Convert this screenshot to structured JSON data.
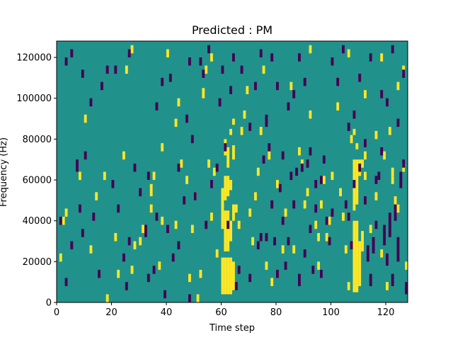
{
  "chart_data": {
    "type": "heatmap",
    "title": "Predicted : PM",
    "xlabel": "Time step",
    "ylabel": "Frequency (Hz)",
    "xlim": [
      0,
      128
    ],
    "ylim": [
      0,
      128000
    ],
    "x_ticks": [
      0,
      20,
      40,
      60,
      80,
      100,
      120
    ],
    "y_ticks": [
      0,
      20000,
      40000,
      60000,
      80000,
      100000,
      120000
    ],
    "x_tick_labels": [
      "0",
      "20",
      "40",
      "60",
      "80",
      "100",
      "120"
    ],
    "y_tick_labels": [
      "0",
      "20000",
      "40000",
      "60000",
      "80000",
      "100000",
      "120000"
    ],
    "n_freq_bins": 128,
    "bin_width_hz": 1000,
    "background_value": 0,
    "colors": {
      "low": "#440154",
      "background": "#21918c",
      "high": "#fde725"
    },
    "cell_values": {
      "low": -1,
      "background": 0,
      "high": 1
    },
    "high_cells": [
      [
        60,
        4,
        22
      ],
      [
        61,
        4,
        22
      ],
      [
        62,
        4,
        22
      ],
      [
        63,
        4,
        22
      ],
      [
        64,
        6,
        20
      ],
      [
        61,
        25,
        45
      ],
      [
        62,
        25,
        45
      ],
      [
        60,
        36,
        48
      ],
      [
        63,
        30,
        40
      ],
      [
        61,
        50,
        62
      ],
      [
        62,
        52,
        62
      ],
      [
        63,
        55,
        60
      ],
      [
        60,
        46,
        56
      ],
      [
        64,
        40,
        48
      ],
      [
        61,
        72,
        80
      ],
      [
        62,
        66,
        76
      ],
      [
        64,
        70,
        77
      ],
      [
        63,
        82,
        85
      ],
      [
        64,
        87,
        90
      ],
      [
        108,
        5,
        40
      ],
      [
        109,
        5,
        40
      ],
      [
        110,
        8,
        30
      ],
      [
        111,
        25,
        35
      ],
      [
        108,
        45,
        70
      ],
      [
        109,
        48,
        70
      ],
      [
        110,
        62,
        70
      ],
      [
        111,
        66,
        70
      ],
      [
        112,
        70,
        74
      ],
      [
        109,
        75,
        78
      ],
      [
        108,
        82,
        85
      ],
      [
        51,
        0,
        4
      ],
      [
        52,
        12,
        16
      ],
      [
        18,
        0,
        4
      ],
      [
        3,
        42,
        46
      ],
      [
        2,
        38,
        42
      ],
      [
        1,
        20,
        24
      ],
      [
        14,
        50,
        54
      ],
      [
        17,
        60,
        64
      ],
      [
        21,
        30,
        34
      ],
      [
        22,
        12,
        16
      ],
      [
        27,
        14,
        18
      ],
      [
        28,
        26,
        30
      ],
      [
        31,
        34,
        38
      ],
      [
        34,
        44,
        48
      ],
      [
        34,
        52,
        58
      ],
      [
        37,
        16,
        20
      ],
      [
        38,
        38,
        42
      ],
      [
        43,
        36,
        40
      ],
      [
        43,
        86,
        90
      ],
      [
        45,
        66,
        70
      ],
      [
        47,
        58,
        62
      ],
      [
        53,
        100,
        105
      ],
      [
        55,
        66,
        70
      ],
      [
        56,
        40,
        44
      ],
      [
        57,
        62,
        66
      ],
      [
        58,
        22,
        26
      ],
      [
        67,
        82,
        86
      ],
      [
        68,
        90,
        94
      ],
      [
        69,
        102,
        106
      ],
      [
        70,
        42,
        46
      ],
      [
        71,
        28,
        32
      ],
      [
        72,
        50,
        54
      ],
      [
        73,
        62,
        66
      ],
      [
        74,
        82,
        86
      ],
      [
        75,
        112,
        116
      ],
      [
        76,
        16,
        20
      ],
      [
        77,
        70,
        74
      ],
      [
        78,
        8,
        12
      ],
      [
        80,
        56,
        60
      ],
      [
        82,
        24,
        28
      ],
      [
        83,
        42,
        46
      ],
      [
        85,
        104,
        108
      ],
      [
        86,
        24,
        28
      ],
      [
        88,
        72,
        76
      ],
      [
        89,
        66,
        70
      ],
      [
        90,
        46,
        50
      ],
      [
        91,
        52,
        56
      ],
      [
        92,
        90,
        94
      ],
      [
        94,
        36,
        40
      ],
      [
        95,
        16,
        20
      ],
      [
        96,
        46,
        50
      ],
      [
        97,
        58,
        62
      ],
      [
        98,
        30,
        34
      ],
      [
        99,
        38,
        42
      ],
      [
        100,
        60,
        64
      ],
      [
        102,
        94,
        98
      ],
      [
        104,
        40,
        44
      ],
      [
        105,
        24,
        28
      ],
      [
        106,
        6,
        10
      ],
      [
        107,
        78,
        82
      ],
      [
        110,
        62,
        66
      ],
      [
        112,
        60,
        64
      ],
      [
        114,
        34,
        38
      ],
      [
        116,
        50,
        54
      ],
      [
        118,
        22,
        26
      ],
      [
        119,
        70,
        74
      ],
      [
        120,
        6,
        10
      ],
      [
        121,
        82,
        86
      ],
      [
        122,
        58,
        62
      ],
      [
        123,
        48,
        52
      ],
      [
        124,
        104,
        108
      ],
      [
        126,
        64,
        68
      ],
      [
        127,
        16,
        20
      ],
      [
        128,
        58,
        62
      ],
      [
        8,
        60,
        64
      ],
      [
        10,
        88,
        92
      ],
      [
        12,
        24,
        28
      ],
      [
        24,
        70,
        74
      ],
      [
        25,
        112,
        116
      ],
      [
        27,
        122,
        126
      ],
      [
        30,
        28,
        32
      ],
      [
        35,
        60,
        64
      ],
      [
        38,
        74,
        78
      ],
      [
        40,
        120,
        124
      ],
      [
        44,
        96,
        100
      ],
      [
        48,
        10,
        14
      ],
      [
        49,
        34,
        38
      ],
      [
        50,
        50,
        54
      ],
      [
        54,
        112,
        116
      ],
      [
        56,
        118,
        122
      ],
      [
        65,
        44,
        48
      ],
      [
        66,
        36,
        40
      ],
      [
        92,
        122,
        126
      ],
      [
        95,
        30,
        34
      ],
      [
        103,
        52,
        56
      ],
      [
        106,
        120,
        124
      ],
      [
        112,
        100,
        104
      ],
      [
        116,
        80,
        84
      ],
      [
        118,
        118,
        122
      ],
      [
        122,
        62,
        66
      ],
      [
        124,
        44,
        48
      ],
      [
        126,
        112,
        116
      ]
    ],
    "low_cells": [
      [
        48,
        0,
        4
      ],
      [
        50,
        50,
        54
      ],
      [
        56,
        56,
        60
      ],
      [
        65,
        6,
        10
      ],
      [
        66,
        14,
        18
      ],
      [
        70,
        10,
        14
      ],
      [
        73,
        26,
        30
      ],
      [
        74,
        30,
        34
      ],
      [
        75,
        68,
        72
      ],
      [
        76,
        86,
        92
      ],
      [
        77,
        74,
        78
      ],
      [
        78,
        46,
        50
      ],
      [
        79,
        28,
        32
      ],
      [
        80,
        12,
        16
      ],
      [
        81,
        54,
        58
      ],
      [
        82,
        38,
        42
      ],
      [
        83,
        16,
        20
      ],
      [
        84,
        94,
        98
      ],
      [
        85,
        60,
        64
      ],
      [
        86,
        46,
        50
      ],
      [
        87,
        62,
        66
      ],
      [
        88,
        8,
        14
      ],
      [
        89,
        64,
        68
      ],
      [
        90,
        22,
        26
      ],
      [
        91,
        66,
        70
      ],
      [
        92,
        34,
        38
      ],
      [
        93,
        14,
        18
      ],
      [
        94,
        56,
        60
      ],
      [
        96,
        12,
        16
      ],
      [
        97,
        68,
        72
      ],
      [
        98,
        38,
        42
      ],
      [
        99,
        28,
        32
      ],
      [
        100,
        42,
        46
      ],
      [
        105,
        46,
        50
      ],
      [
        106,
        40,
        44
      ],
      [
        107,
        26,
        30
      ],
      [
        108,
        56,
        60
      ],
      [
        110,
        64,
        68
      ],
      [
        112,
        48,
        52
      ],
      [
        113,
        20,
        28
      ],
      [
        114,
        8,
        14
      ],
      [
        115,
        24,
        32
      ],
      [
        116,
        36,
        40
      ],
      [
        117,
        60,
        64
      ],
      [
        118,
        72,
        76
      ],
      [
        119,
        28,
        38
      ],
      [
        120,
        18,
        24
      ],
      [
        121,
        32,
        44
      ],
      [
        122,
        8,
        14
      ],
      [
        123,
        40,
        48
      ],
      [
        124,
        20,
        32
      ],
      [
        125,
        56,
        64
      ],
      [
        126,
        66,
        70
      ],
      [
        127,
        4,
        10
      ],
      [
        1,
        38,
        42
      ],
      [
        3,
        8,
        12
      ],
      [
        5,
        26,
        30
      ],
      [
        7,
        64,
        70
      ],
      [
        8,
        44,
        48
      ],
      [
        9,
        32,
        36
      ],
      [
        10,
        70,
        74
      ],
      [
        13,
        40,
        44
      ],
      [
        15,
        12,
        16
      ],
      [
        16,
        104,
        108
      ],
      [
        18,
        112,
        116
      ],
      [
        20,
        56,
        60
      ],
      [
        22,
        44,
        48
      ],
      [
        24,
        20,
        24
      ],
      [
        25,
        6,
        10
      ],
      [
        26,
        28,
        32
      ],
      [
        28,
        64,
        68
      ],
      [
        30,
        52,
        56
      ],
      [
        32,
        32,
        38
      ],
      [
        33,
        10,
        14
      ],
      [
        35,
        14,
        18
      ],
      [
        36,
        40,
        44
      ],
      [
        38,
        106,
        110
      ],
      [
        39,
        2,
        6
      ],
      [
        40,
        34,
        38
      ],
      [
        42,
        20,
        24
      ],
      [
        44,
        26,
        30
      ],
      [
        46,
        48,
        52
      ],
      [
        47,
        88,
        92
      ],
      [
        49,
        78,
        82
      ],
      [
        52,
        116,
        120
      ],
      [
        53,
        110,
        114
      ],
      [
        54,
        36,
        40
      ],
      [
        58,
        64,
        68
      ],
      [
        62,
        36,
        40
      ],
      [
        67,
        112,
        116
      ],
      [
        70,
        84,
        88
      ],
      [
        72,
        104,
        108
      ],
      [
        74,
        120,
        124
      ],
      [
        76,
        30,
        34
      ],
      [
        78,
        118,
        122
      ],
      [
        80,
        104,
        108
      ],
      [
        82,
        70,
        74
      ],
      [
        84,
        28,
        32
      ],
      [
        86,
        100,
        104
      ],
      [
        88,
        118,
        122
      ],
      [
        90,
        106,
        110
      ],
      [
        92,
        72,
        76
      ],
      [
        94,
        44,
        48
      ],
      [
        96,
        58,
        62
      ],
      [
        100,
        116,
        120
      ],
      [
        102,
        106,
        110
      ],
      [
        104,
        122,
        126
      ],
      [
        106,
        84,
        88
      ],
      [
        108,
        90,
        94
      ],
      [
        110,
        108,
        112
      ],
      [
        112,
        76,
        80
      ],
      [
        114,
        118,
        122
      ],
      [
        116,
        58,
        62
      ],
      [
        118,
        100,
        104
      ],
      [
        120,
        96,
        100
      ],
      [
        122,
        122,
        126
      ],
      [
        124,
        86,
        90
      ],
      [
        126,
        110,
        114
      ],
      [
        3,
        116,
        120
      ],
      [
        5,
        120,
        124
      ],
      [
        9,
        110,
        114
      ],
      [
        12,
        96,
        100
      ],
      [
        21,
        112,
        116
      ],
      [
        26,
        120,
        124
      ],
      [
        33,
        60,
        64
      ],
      [
        36,
        94,
        98
      ],
      [
        41,
        108,
        112
      ],
      [
        44,
        64,
        68
      ],
      [
        48,
        116,
        120
      ],
      [
        55,
        122,
        126
      ],
      [
        59,
        96,
        100
      ],
      [
        60,
        112,
        116
      ],
      [
        61,
        74,
        78
      ],
      [
        63,
        102,
        106
      ],
      [
        64,
        118,
        122
      ]
    ]
  }
}
